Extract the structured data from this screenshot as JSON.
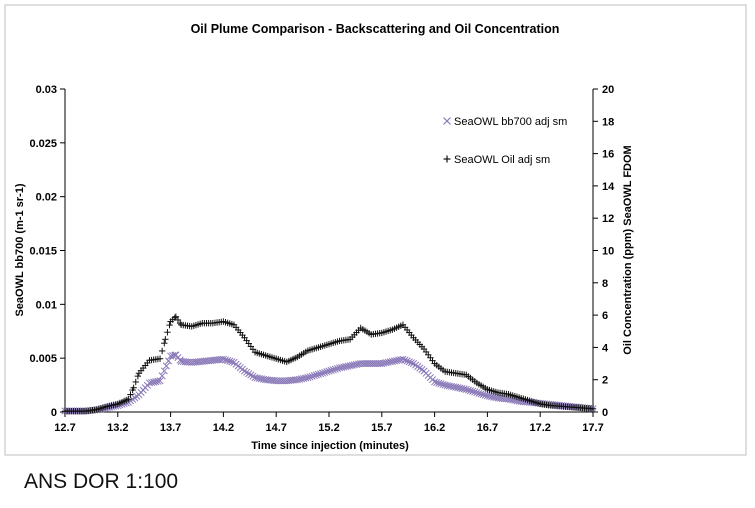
{
  "caption": "ANS DOR 1:100",
  "chart_data": {
    "type": "scatter",
    "title": "Oil Plume Comparison - Backscattering and Oil Concentration",
    "xlabel": "Time since injection (minutes)",
    "ylabel": "SeaOWL bb700 (m-1 sr-1)",
    "y2label": "Oil Concentration (ppm) SeaOWL FDOM",
    "xlim": [
      12.7,
      17.7
    ],
    "ylim": [
      0,
      0.03
    ],
    "y2lim": [
      0,
      20
    ],
    "x_ticks": [
      "12.7",
      "13.2",
      "13.7",
      "14.2",
      "14.7",
      "15.2",
      "15.7",
      "16.2",
      "16.7",
      "17.2",
      "17.7"
    ],
    "y_ticks": [
      "0",
      "0.005",
      "0.01",
      "0.015",
      "0.02",
      "0.025",
      "0.03"
    ],
    "y2_ticks": [
      "0",
      "2",
      "4",
      "6",
      "8",
      "10",
      "12",
      "14",
      "16",
      "18",
      "20"
    ],
    "legend_position": "top-right",
    "colors": {
      "bb700": "#8a79b8",
      "oil": "#111111",
      "axis": "#000000",
      "border": "#bfbfbf"
    },
    "series": [
      {
        "name": "SeaOWL bb700 adj sm",
        "marker": "x",
        "axis": "left",
        "x": [
          12.7,
          12.9,
          13.0,
          13.1,
          13.2,
          13.3,
          13.4,
          13.5,
          13.6,
          13.7,
          13.75,
          13.8,
          13.9,
          14.0,
          14.1,
          14.2,
          14.3,
          14.4,
          14.5,
          14.6,
          14.7,
          14.8,
          14.9,
          15.0,
          15.1,
          15.2,
          15.3,
          15.4,
          15.5,
          15.6,
          15.7,
          15.8,
          15.9,
          16.0,
          16.1,
          16.2,
          16.3,
          16.4,
          16.5,
          16.6,
          16.7,
          16.8,
          16.9,
          17.0,
          17.1,
          17.2,
          17.3,
          17.4,
          17.5,
          17.6,
          17.7
        ],
        "values": [
          0.0001,
          0.0001,
          0.0002,
          0.0004,
          0.0006,
          0.0009,
          0.0016,
          0.0027,
          0.0029,
          0.0052,
          0.0053,
          0.0047,
          0.0046,
          0.0047,
          0.0048,
          0.0049,
          0.0046,
          0.0038,
          0.0032,
          0.003,
          0.0029,
          0.0029,
          0.003,
          0.0032,
          0.0035,
          0.0038,
          0.0041,
          0.0043,
          0.0045,
          0.0045,
          0.0045,
          0.0047,
          0.0049,
          0.0045,
          0.0038,
          0.0028,
          0.0025,
          0.0023,
          0.0021,
          0.0018,
          0.0015,
          0.0013,
          0.0012,
          0.001,
          0.0009,
          0.0008,
          0.0007,
          0.0006,
          0.0005,
          0.0004,
          0.0003
        ]
      },
      {
        "name": "SeaOWL Oil adj sm",
        "marker": "+",
        "axis": "right",
        "x": [
          12.7,
          12.9,
          13.0,
          13.1,
          13.2,
          13.3,
          13.35,
          13.4,
          13.5,
          13.6,
          13.65,
          13.7,
          13.75,
          13.8,
          13.9,
          14.0,
          14.1,
          14.2,
          14.3,
          14.4,
          14.5,
          14.6,
          14.7,
          14.8,
          14.9,
          15.0,
          15.1,
          15.2,
          15.3,
          15.4,
          15.5,
          15.6,
          15.7,
          15.8,
          15.9,
          16.0,
          16.1,
          16.2,
          16.3,
          16.4,
          16.5,
          16.6,
          16.7,
          16.8,
          16.9,
          17.0,
          17.1,
          17.2,
          17.3,
          17.4,
          17.5,
          17.6,
          17.7
        ],
        "values": [
          0.05,
          0.05,
          0.15,
          0.35,
          0.5,
          0.8,
          1.5,
          2.4,
          3.2,
          3.3,
          4.5,
          5.6,
          5.9,
          5.4,
          5.3,
          5.5,
          5.5,
          5.6,
          5.4,
          4.6,
          3.7,
          3.5,
          3.3,
          3.1,
          3.4,
          3.8,
          4.0,
          4.2,
          4.4,
          4.5,
          5.2,
          4.8,
          4.9,
          5.1,
          5.4,
          4.6,
          3.9,
          3.0,
          2.5,
          2.4,
          2.3,
          1.8,
          1.4,
          1.2,
          1.1,
          0.9,
          0.7,
          0.5,
          0.4,
          0.35,
          0.3,
          0.25,
          0.2
        ]
      }
    ]
  }
}
